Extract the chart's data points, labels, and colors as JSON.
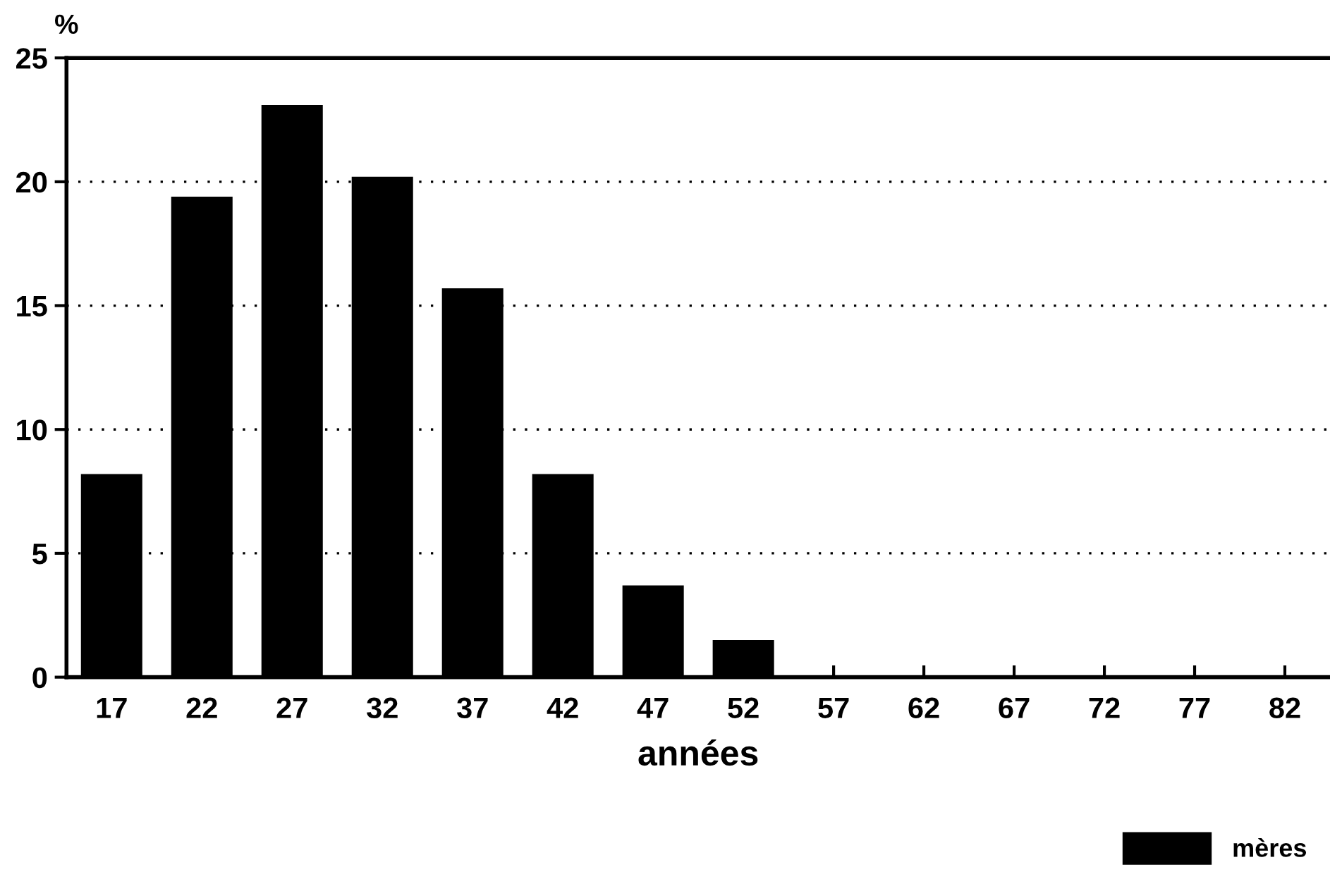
{
  "chart_data": {
    "type": "bar",
    "xlabel": "années",
    "ylabel": "%",
    "categories": [
      "17",
      "22",
      "27",
      "32",
      "37",
      "42",
      "47",
      "52",
      "57",
      "62",
      "67",
      "72",
      "77",
      "82"
    ],
    "series": [
      {
        "name": "mères",
        "color": "#000000",
        "values": [
          8.2,
          19.4,
          23.1,
          20.2,
          15.7,
          8.2,
          3.7,
          1.5,
          0,
          0,
          0,
          0,
          0,
          0
        ]
      }
    ],
    "ylim": [
      0,
      25
    ],
    "yticks": [
      0,
      5,
      10,
      15,
      20,
      25
    ],
    "grid": "y",
    "legend": "bottom right"
  }
}
